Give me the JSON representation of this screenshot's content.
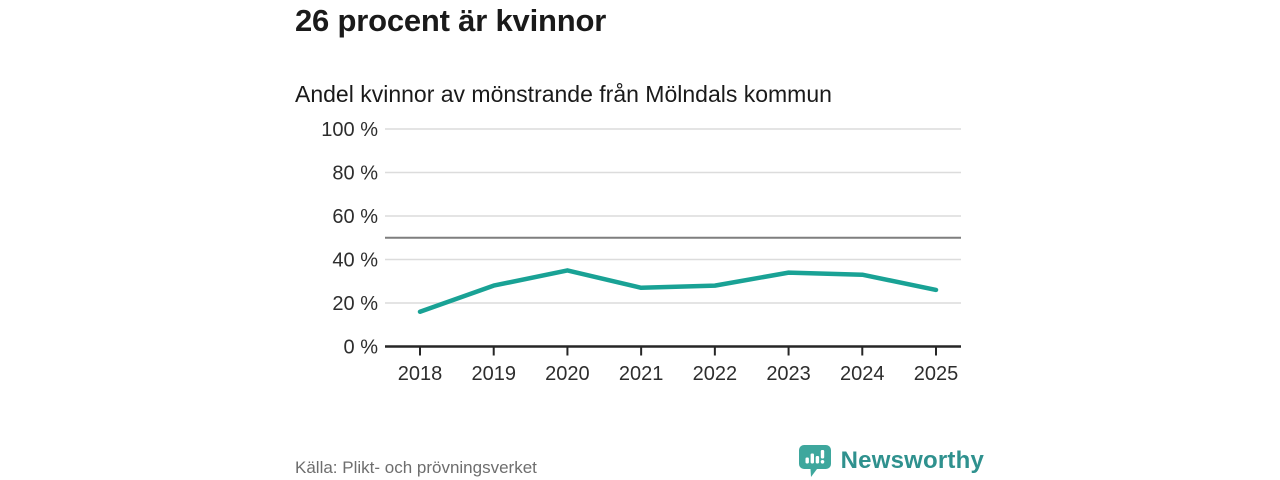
{
  "header": {
    "title": "26 procent är kvinnor",
    "subtitle": "Andel kvinnor av mönstrande från Mölndals kommun"
  },
  "chart_data": {
    "type": "line",
    "title": "26 procent är kvinnor",
    "subtitle": "Andel kvinnor av mönstrande från Mölndals kommun",
    "categories": [
      "2018",
      "2019",
      "2020",
      "2021",
      "2022",
      "2023",
      "2024",
      "2025"
    ],
    "values": [
      16,
      28,
      35,
      27,
      28,
      34,
      33,
      26
    ],
    "unit": "%",
    "ylim": [
      0,
      100
    ],
    "yticks": [
      0,
      20,
      40,
      60,
      80,
      100
    ],
    "ytick_suffix": " %",
    "reference_line": 50,
    "grid": true,
    "legend": "none",
    "xlabel": "",
    "ylabel": ""
  },
  "footer": {
    "source": "Källa: Plikt- och prövningsverket",
    "brand": "Newsworthy"
  },
  "colors": {
    "line": "#19a295",
    "grid": "#dcdcdc",
    "axis": "#262626",
    "reference": "#7e7e7e",
    "tick_text": "#2d2d2d",
    "text": "#1a1a1a",
    "muted": "#6e6e6e",
    "brand_badge": "#3ea79d",
    "brand_text": "#2f918e"
  }
}
